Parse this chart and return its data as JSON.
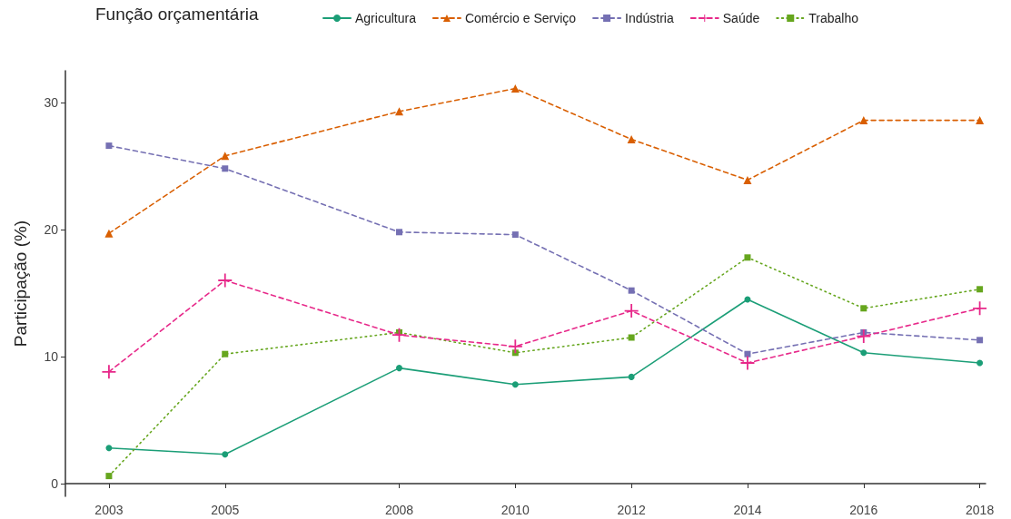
{
  "chart_data": {
    "type": "line",
    "ylabel": "Participação (%)",
    "legend_title": "Função orçamentária",
    "legend": "top",
    "grid": false,
    "x": [
      2003,
      2005,
      2008,
      2010,
      2012,
      2014,
      2016,
      2018
    ],
    "xlim": [
      2002.25,
      2018.1
    ],
    "xticks": [
      2003,
      2005,
      2008,
      2010,
      2012,
      2014,
      2016,
      2018
    ],
    "ylim": [
      -1,
      32.5
    ],
    "yticks": [
      0,
      10,
      20,
      30
    ],
    "series": [
      {
        "name": "Agricultura",
        "color": "#1b9e77",
        "marker": "circle",
        "line_style": "solid",
        "values": [
          2.8,
          2.3,
          9.1,
          7.8,
          8.4,
          14.5,
          10.3,
          9.5
        ]
      },
      {
        "name": "Comércio e Serviço",
        "color": "#d95f02",
        "marker": "triangle",
        "line_style": "dashed",
        "values": [
          19.7,
          25.8,
          29.3,
          31.1,
          27.1,
          23.9,
          28.6,
          28.6
        ]
      },
      {
        "name": "Indústria",
        "color": "#7570b3",
        "marker": "square",
        "line_style": "dashed",
        "values": [
          26.6,
          24.8,
          19.8,
          19.6,
          15.2,
          10.2,
          11.9,
          11.3
        ]
      },
      {
        "name": "Saúde",
        "color": "#e7298a",
        "marker": "cross",
        "line_style": "dashed",
        "values": [
          8.8,
          16.0,
          11.7,
          10.8,
          13.6,
          9.5,
          11.6,
          13.8
        ]
      },
      {
        "name": "Trabalho",
        "color": "#66a61e",
        "marker": "square",
        "line_style": "dotted",
        "values": [
          0.6,
          10.2,
          11.9,
          10.3,
          11.5,
          17.8,
          13.8,
          15.3
        ]
      }
    ]
  }
}
